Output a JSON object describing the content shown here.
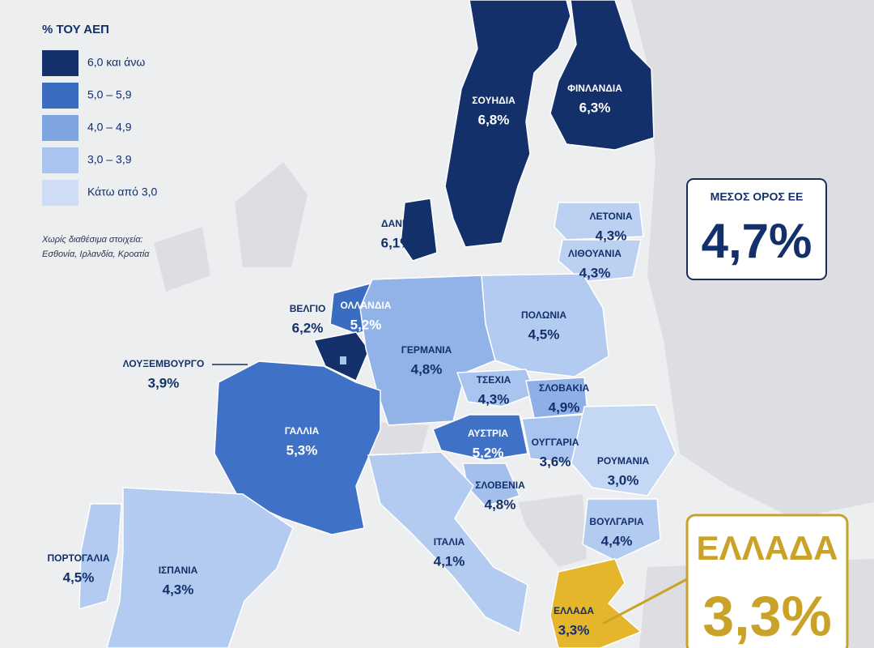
{
  "legend": {
    "title": "% ΤΟΥ ΑΕΠ",
    "items": [
      {
        "label": "6,0 και άνω",
        "color": "#13306b"
      },
      {
        "label": "5,0 – 5,9",
        "color": "#3a6cc0"
      },
      {
        "label": "4,0 – 4,9",
        "color": "#7ea4e2"
      },
      {
        "label": "3,0 – 3,9",
        "color": "#a9c4ee"
      },
      {
        "label": "Κάτω από 3,0",
        "color": "#cfdcf5"
      }
    ],
    "note": [
      "Χωρίς διαθέσιμα στοιχεία:",
      "Εσθονία, Ιρλανδία, Κροατία"
    ]
  },
  "regions": [
    {
      "name": "ΣΟΥΗΔΙΑ",
      "value": "6,8%",
      "color": "#13306b"
    },
    {
      "name": "ΦΙΝΛΑΝΔΙΑ",
      "value": "6,3%",
      "color": "#13306b"
    },
    {
      "name": "ΔΑΝΙΑ",
      "value": "6,1%",
      "color": "#13306b"
    },
    {
      "name": "ΛΕΤΟΝΙΑ",
      "value": "4,3%",
      "color": "#bcd1f2"
    },
    {
      "name": "ΛΙΘΟΥΑΝΙΑ",
      "value": "4,3%",
      "color": "#bcd1f2"
    },
    {
      "name": "ΟΛΛΑΝΔΙΑ",
      "value": "5,2%",
      "color": "#3a6cc0"
    },
    {
      "name": "ΒΕΛΓΙΟ",
      "value": "6,2%",
      "color": "#13306b"
    },
    {
      "name": "ΛΟΥΞΕΜΒΟΥΡΓΟ",
      "value": "3,9%",
      "color": "#a9c4ee"
    },
    {
      "name": "ΓΕΡΜΑΝΙΑ",
      "value": "4,8%",
      "color": "#92b3e8"
    },
    {
      "name": "ΠΟΛΩΝΙΑ",
      "value": "4,5%",
      "color": "#b3cbf0"
    },
    {
      "name": "ΤΣΕΧΙΑ",
      "value": "4,3%",
      "color": "#a9c4ee"
    },
    {
      "name": "ΣΛΟΒΑΚΙΑ",
      "value": "4,9%",
      "color": "#8fb0e6"
    },
    {
      "name": "ΓΑΛΛΙΑ",
      "value": "5,3%",
      "color": "#3f72c6"
    },
    {
      "name": "ΑΥΣΤΡΙΑ",
      "value": "5,2%",
      "color": "#3f72c6"
    },
    {
      "name": "ΟΥΓΓΑΡΙΑ",
      "value": "3,6%",
      "color": "#a9c4ee"
    },
    {
      "name": "ΡΟΥΜΑΝΙΑ",
      "value": "3,0%",
      "color": "#c4d7f4"
    },
    {
      "name": "ΣΛΟΒΕΝΙΑ",
      "value": "4,8%",
      "color": "#a3bfec"
    },
    {
      "name": "ΒΟΥΛΓΑΡΙΑ",
      "value": "4,4%",
      "color": "#b3cbf0"
    },
    {
      "name": "ΙΤΑΛΙΑ",
      "value": "4,1%",
      "color": "#b3cbf0"
    },
    {
      "name": "ΠΟΡΤΟΓΑΛΙΑ",
      "value": "4,5%",
      "color": "#b3cbf0"
    },
    {
      "name": "ΙΣΠΑΝΙΑ",
      "value": "4,3%",
      "color": "#b3cbf0"
    },
    {
      "name": "ΕΛΛΑΔΑ",
      "value": "3,3%",
      "color": "#e5b52c"
    }
  ],
  "eu_average": {
    "title": "ΜΕΣΟΣ ΟΡΟΣ ΕΕ",
    "value": "4,7%"
  },
  "greece_callout": {
    "title": "ΕΛΛΑΔΑ",
    "value": "3,3%"
  }
}
